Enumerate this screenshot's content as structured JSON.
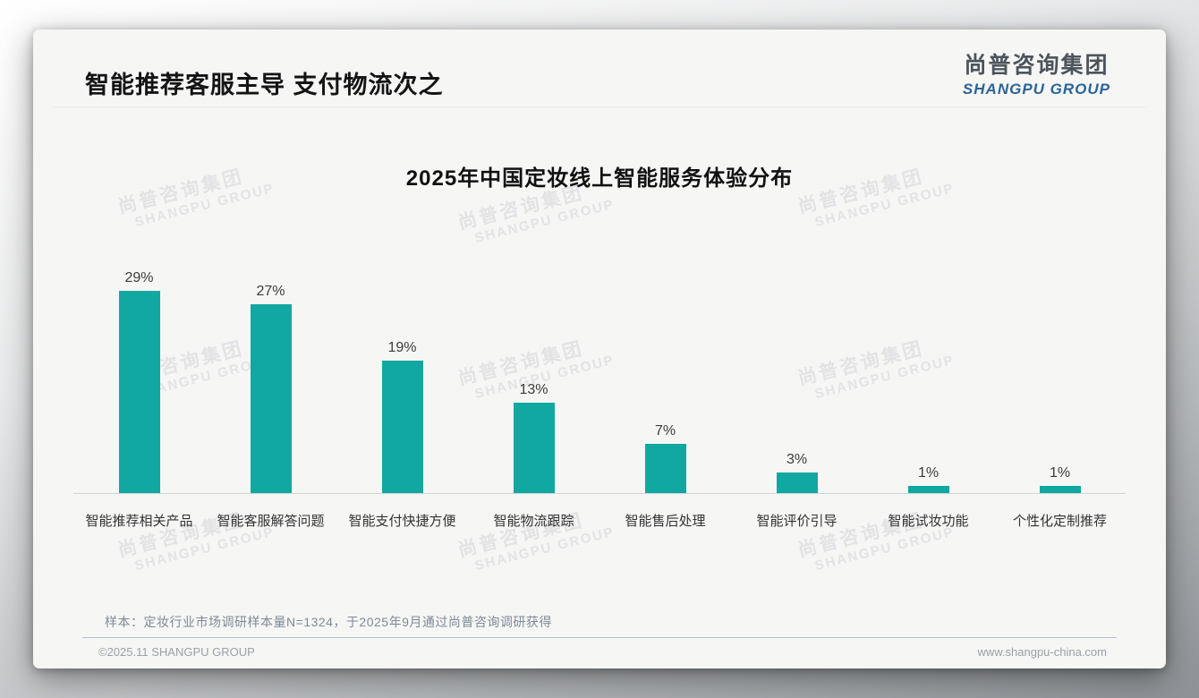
{
  "header": {
    "title": "智能推荐客服主导 支付物流次之"
  },
  "logo": {
    "cn": "尚普咨询集团",
    "en": "SHANGPU GROUP"
  },
  "watermark": {
    "line1": "尚普咨询集团",
    "line2": "SHANGPU GROUP"
  },
  "chart_data": {
    "type": "bar",
    "title": "2025年中国定妆线上智能服务体验分布",
    "categories": [
      "智能推荐相关产品",
      "智能客服解答问题",
      "智能支付快捷方便",
      "智能物流跟踪",
      "智能售后处理",
      "智能评价引导",
      "智能试妆功能",
      "个性化定制推荐"
    ],
    "values": [
      29,
      27,
      19,
      13,
      7,
      3,
      1,
      1
    ],
    "unit": "%",
    "bar_color": "#10a8a1",
    "xlabel": "",
    "ylabel": "",
    "ylim": [
      0,
      30
    ],
    "grid": false,
    "legend": false,
    "data_labels": true
  },
  "footnote": {
    "sample_note": "样本：定妆行业市场调研样本量N=1324，于2025年9月通过尚普咨询调研获得"
  },
  "footer": {
    "copyright": "©2025.11 SHANGPU GROUP",
    "website": "www.shangpu-china.com"
  }
}
